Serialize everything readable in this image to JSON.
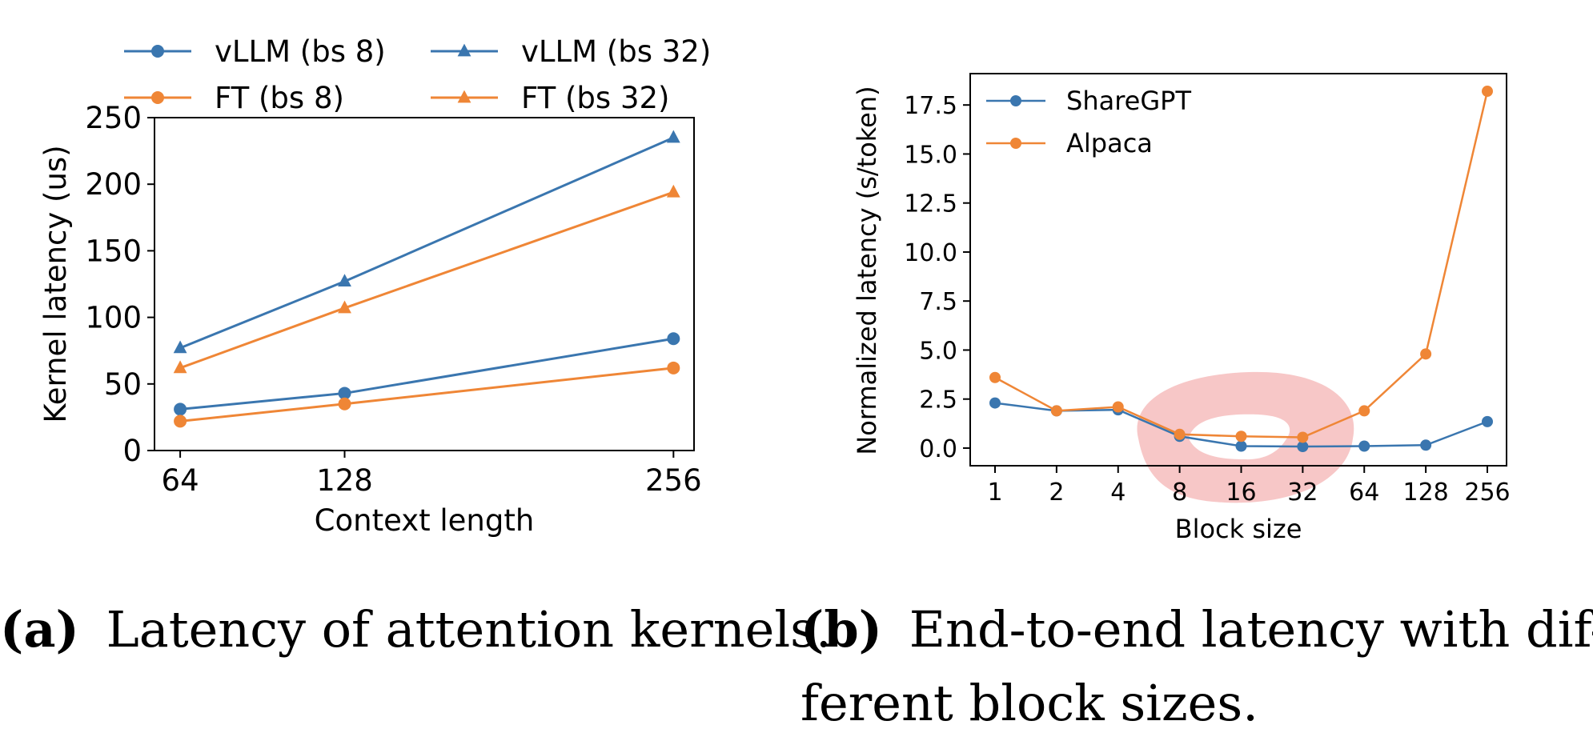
{
  "colors": {
    "blue": "#3a76af",
    "orange": "#ef8636",
    "highlight": "#f2a1a1"
  },
  "captions": {
    "a_letter": "(a)",
    "a_text": "Latency of attention kernels.",
    "b_letter": "(b)",
    "b_text_line1": "End-to-end latency with dif-",
    "b_text_line2": "ferent block sizes."
  },
  "chart_data": [
    {
      "type": "line",
      "title": "",
      "xlabel": "Context length",
      "ylabel": "Kernel latency (us)",
      "categories": [
        "64",
        "128",
        "256"
      ],
      "x": [
        64,
        128,
        256
      ],
      "xlim": [
        54,
        264
      ],
      "ylim": [
        0,
        250
      ],
      "yticks": [
        "0",
        "50",
        "100",
        "150",
        "200",
        "250"
      ],
      "legend": {
        "placement": "top, above axes, 2 columns"
      },
      "grid": false,
      "series": [
        {
          "name": "vLLM (bs 8)",
          "color": "#3a76af",
          "marker": "circle",
          "values": [
            31,
            43,
            84
          ]
        },
        {
          "name": "FT (bs 8)",
          "color": "#ef8636",
          "marker": "circle",
          "values": [
            22,
            35,
            62
          ]
        },
        {
          "name": "vLLM (bs 32)",
          "color": "#3a76af",
          "marker": "triangle",
          "values": [
            77,
            127,
            235
          ]
        },
        {
          "name": "FT (bs 32)",
          "color": "#ef8636",
          "marker": "triangle",
          "values": [
            62,
            107,
            194
          ]
        }
      ]
    },
    {
      "type": "line",
      "title": "",
      "xlabel": "Block size",
      "ylabel": "Normalized latency (s/token)",
      "categories": [
        "1",
        "2",
        "4",
        "8",
        "16",
        "32",
        "64",
        "128",
        "256"
      ],
      "ylim": [
        -0.9,
        19.1
      ],
      "yticks": [
        "0.0",
        "2.5",
        "5.0",
        "7.5",
        "10.0",
        "12.5",
        "15.0",
        "17.5"
      ],
      "legend": {
        "placement": "top-left"
      },
      "grid": false,
      "highlight": "blob around block sizes 8–32",
      "series": [
        {
          "name": "ShareGPT",
          "color": "#3a76af",
          "marker": "circle",
          "values": [
            2.3,
            1.9,
            1.95,
            0.6,
            0.1,
            0.08,
            0.1,
            0.15,
            1.35
          ]
        },
        {
          "name": "Alpaca",
          "color": "#ef8636",
          "marker": "circle",
          "values": [
            3.6,
            1.9,
            2.1,
            0.7,
            0.6,
            0.55,
            1.9,
            4.8,
            18.2
          ]
        }
      ]
    }
  ]
}
